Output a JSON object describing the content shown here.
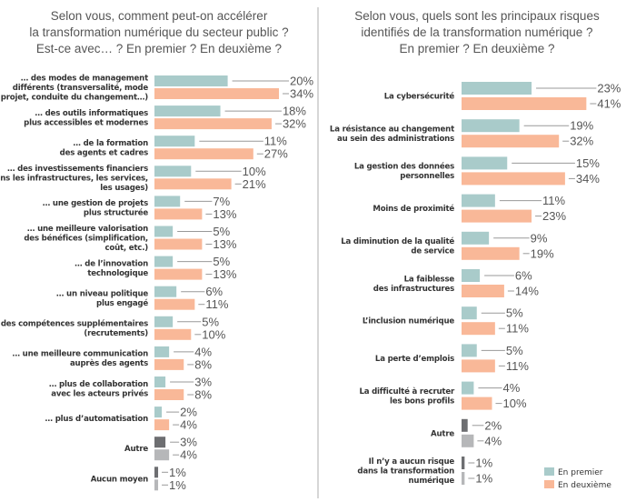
{
  "colors": {
    "first": "#a9cbca",
    "second": "#f9b898",
    "other_first": "#6d6e71",
    "other_second": "#b6b7b9"
  },
  "legend": {
    "first": "En premier",
    "second": "En deuxième",
    "placement": "bottom-right"
  },
  "chart_data": [
    {
      "type": "bar",
      "orientation": "horizontal",
      "title": [
        "Selon vous, comment peut-on accélérer",
        "la transformation numérique du secteur public ?",
        "Est-ce avec… ? En premier ? En deuxième ?"
      ],
      "categories": [
        [
          "… des modes de management",
          "différents (transversalité, mode",
          "projet, conduite du changement…)"
        ],
        [
          "… des outils informatiques",
          "plus accessibles et modernes"
        ],
        [
          "… de la formation",
          "des agents et cadres"
        ],
        [
          "… des investissements financiers",
          "(dans les infrastructures, les services,",
          "les usages)"
        ],
        [
          "… une gestion de projets",
          "plus structurée"
        ],
        [
          "… une meilleure valorisation",
          "des bénéfices (simplification,",
          "coût, etc.)"
        ],
        [
          "… de l’innovation",
          "technologique"
        ],
        [
          "… un niveau politique",
          "plus engagé"
        ],
        [
          "… des compétences supplémentaires",
          "(recrutements)"
        ],
        [
          "… une meilleure communication",
          "auprès des agents"
        ],
        [
          "… plus de collaboration",
          "avec les acteurs privés"
        ],
        [
          "… plus d’automatisation"
        ],
        [
          "Autre"
        ],
        [
          "Aucun moyen"
        ]
      ],
      "series": [
        {
          "name": "En premier",
          "values": [
            20,
            18,
            11,
            10,
            7,
            5,
            5,
            6,
            5,
            4,
            3,
            2,
            3,
            1
          ]
        },
        {
          "name": "En deuxième",
          "values": [
            34,
            32,
            27,
            21,
            13,
            13,
            13,
            11,
            10,
            8,
            8,
            4,
            4,
            1
          ]
        }
      ],
      "gray_categories": [
        "Autre",
        "Aucun moyen"
      ],
      "unit": "%"
    },
    {
      "type": "bar",
      "orientation": "horizontal",
      "title": [
        "Selon vous, quels sont les principaux risques",
        "identifiés de la transformation numérique ?",
        "En premier ? En deuxième ?"
      ],
      "categories": [
        [
          "La cybersécurité"
        ],
        [
          "La résistance au changement",
          "au sein des administrations"
        ],
        [
          "La gestion des données",
          "personnelles"
        ],
        [
          "Moins de proximité"
        ],
        [
          "La diminution de la qualité",
          "de service"
        ],
        [
          "La faiblesse",
          "des infrastructures"
        ],
        [
          "L’inclusion numérique"
        ],
        [
          "La perte d’emplois"
        ],
        [
          "La difficulté à recruter",
          "les bons profils"
        ],
        [
          "Autre"
        ],
        [
          "Il n’y a aucun risque",
          "dans la transformation",
          "numérique"
        ]
      ],
      "series": [
        {
          "name": "En premier",
          "values": [
            23,
            19,
            15,
            11,
            9,
            6,
            5,
            5,
            4,
            2,
            1
          ]
        },
        {
          "name": "En deuxième",
          "values": [
            41,
            32,
            34,
            23,
            19,
            14,
            11,
            11,
            10,
            4,
            1
          ]
        }
      ],
      "gray_categories": [
        "Autre",
        "Il n’y a aucun risque"
      ],
      "unit": "%"
    }
  ]
}
